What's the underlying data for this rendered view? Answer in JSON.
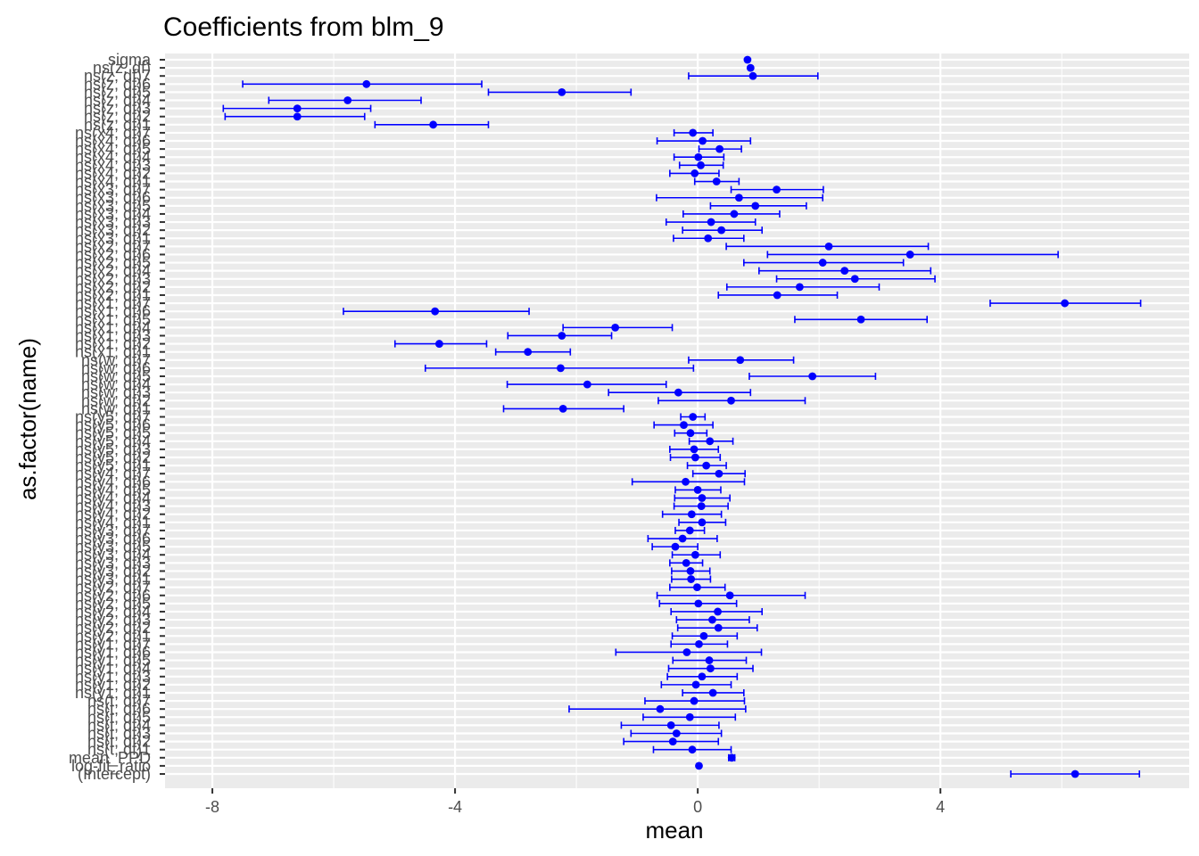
{
  "chart_data": {
    "type": "scatter",
    "title": "Coefficients from blm_9",
    "xlabel": "mean",
    "ylabel": "as.factor(name)",
    "xlim": [
      -8.78,
      8.1
    ],
    "xticks": [
      -8,
      -4,
      0,
      4
    ],
    "grid": true,
    "legend": "none",
    "point_color": "#0000ff",
    "panel_background": "#ebebeb",
    "grid_color": "#ffffff",
    "rows": [
      {
        "name": "sigma",
        "mean": 0.82,
        "lower": 0.82,
        "upper": 0.82
      },
      {
        "name": "ns(z, df)",
        "mean": 0.87,
        "lower": 0.87,
        "upper": 0.87
      },
      {
        "name": "ns(z, df)7",
        "mean": 0.91,
        "lower": -0.15,
        "upper": 1.98
      },
      {
        "name": "ns(z, df)6",
        "mean": -5.46,
        "lower": -7.5,
        "upper": -3.56
      },
      {
        "name": "ns(z, df)5",
        "mean": -2.24,
        "lower": -3.45,
        "upper": -1.1
      },
      {
        "name": "ns(z, df)4",
        "mean": -5.77,
        "lower": -7.07,
        "upper": -4.56
      },
      {
        "name": "ns(z, df)3",
        "mean": -6.6,
        "lower": -7.82,
        "upper": -5.39
      },
      {
        "name": "ns(z, df)2",
        "mean": -6.6,
        "lower": -7.79,
        "upper": -5.49
      },
      {
        "name": "ns(z, df)1",
        "mean": -4.36,
        "lower": -5.32,
        "upper": -3.45
      },
      {
        "name": "ns(x4, df)7",
        "mean": -0.08,
        "lower": -0.39,
        "upper": 0.25
      },
      {
        "name": "ns(x4, df)6",
        "mean": 0.08,
        "lower": -0.67,
        "upper": 0.87
      },
      {
        "name": "ns(x4, df)5",
        "mean": 0.36,
        "lower": 0.02,
        "upper": 0.72
      },
      {
        "name": "ns(x4, df)4",
        "mean": 0.01,
        "lower": -0.39,
        "upper": 0.43
      },
      {
        "name": "ns(x4, df)3",
        "mean": 0.05,
        "lower": -0.3,
        "upper": 0.42
      },
      {
        "name": "ns(x4, df)2",
        "mean": -0.05,
        "lower": -0.46,
        "upper": 0.35
      },
      {
        "name": "ns(x4, df)1",
        "mean": 0.31,
        "lower": -0.05,
        "upper": 0.68
      },
      {
        "name": "ns(x3, df)7",
        "mean": 1.3,
        "lower": 0.55,
        "upper": 2.07
      },
      {
        "name": "ns(x3, df)6",
        "mean": 0.68,
        "lower": -0.68,
        "upper": 2.06
      },
      {
        "name": "ns(x3, df)5",
        "mean": 0.95,
        "lower": 0.21,
        "upper": 1.79
      },
      {
        "name": "ns(x3, df)4",
        "mean": 0.6,
        "lower": -0.24,
        "upper": 1.35
      },
      {
        "name": "ns(x3, df)3",
        "mean": 0.22,
        "lower": -0.52,
        "upper": 0.95
      },
      {
        "name": "ns(x3, df)2",
        "mean": 0.39,
        "lower": -0.25,
        "upper": 1.06
      },
      {
        "name": "ns(x3, df)1",
        "mean": 0.17,
        "lower": -0.4,
        "upper": 0.76
      },
      {
        "name": "ns(x2, df)7",
        "mean": 2.16,
        "lower": 0.47,
        "upper": 3.8
      },
      {
        "name": "ns(x2, df)6",
        "mean": 3.5,
        "lower": 1.15,
        "upper": 5.94
      },
      {
        "name": "ns(x2, df)5",
        "mean": 2.06,
        "lower": 0.76,
        "upper": 3.39
      },
      {
        "name": "ns(x2, df)4",
        "mean": 2.42,
        "lower": 1.01,
        "upper": 3.84
      },
      {
        "name": "ns(x2, df)3",
        "mean": 2.59,
        "lower": 1.3,
        "upper": 3.91
      },
      {
        "name": "ns(x2, df)2",
        "mean": 1.68,
        "lower": 0.48,
        "upper": 2.99
      },
      {
        "name": "ns(x2, df)1",
        "mean": 1.31,
        "lower": 0.34,
        "upper": 2.3
      },
      {
        "name": "ns(x1, df)7",
        "mean": 6.05,
        "lower": 4.82,
        "upper": 7.3
      },
      {
        "name": "ns(x1, df)6",
        "mean": -4.33,
        "lower": -5.84,
        "upper": -2.78
      },
      {
        "name": "ns(x1, df)5",
        "mean": 2.69,
        "lower": 1.6,
        "upper": 3.78
      },
      {
        "name": "ns(x1, df)4",
        "mean": -1.36,
        "lower": -2.22,
        "upper": -0.42
      },
      {
        "name": "ns(x1, df)3",
        "mean": -2.24,
        "lower": -3.13,
        "upper": -1.42
      },
      {
        "name": "ns(x1, df)2",
        "mean": -4.26,
        "lower": -4.99,
        "upper": -3.48
      },
      {
        "name": "ns(x1, df)1",
        "mean": -2.8,
        "lower": -3.33,
        "upper": -2.1
      },
      {
        "name": "ns(w, df)7",
        "mean": 0.7,
        "lower": -0.15,
        "upper": 1.58
      },
      {
        "name": "ns(w, df)6",
        "mean": -2.26,
        "lower": -4.49,
        "upper": -0.07
      },
      {
        "name": "ns(w, df)5",
        "mean": 1.89,
        "lower": 0.85,
        "upper": 2.93
      },
      {
        "name": "ns(w, df)4",
        "mean": -1.82,
        "lower": -3.14,
        "upper": -0.52
      },
      {
        "name": "ns(w, df)3",
        "mean": -0.32,
        "lower": -1.47,
        "upper": 0.87
      },
      {
        "name": "ns(w, df)2",
        "mean": 0.55,
        "lower": -0.65,
        "upper": 1.77
      },
      {
        "name": "ns(w, df)1",
        "mean": -2.22,
        "lower": -3.2,
        "upper": -1.22
      },
      {
        "name": "ns(y5, df)7",
        "mean": -0.08,
        "lower": -0.28,
        "upper": 0.12
      },
      {
        "name": "ns(y5, df)6",
        "mean": -0.23,
        "lower": -0.72,
        "upper": 0.25
      },
      {
        "name": "ns(y5, df)5",
        "mean": -0.12,
        "lower": -0.38,
        "upper": 0.15
      },
      {
        "name": "ns(y5, df)4",
        "mean": 0.2,
        "lower": -0.14,
        "upper": 0.58
      },
      {
        "name": "ns(y5, df)3",
        "mean": -0.06,
        "lower": -0.46,
        "upper": 0.34
      },
      {
        "name": "ns(y5, df)2",
        "mean": -0.04,
        "lower": -0.45,
        "upper": 0.37
      },
      {
        "name": "ns(y5, df)1",
        "mean": 0.14,
        "lower": -0.17,
        "upper": 0.47
      },
      {
        "name": "ns(y4, df)7",
        "mean": 0.35,
        "lower": -0.08,
        "upper": 0.78
      },
      {
        "name": "ns(y4, df)6",
        "mean": -0.2,
        "lower": -1.08,
        "upper": 0.77
      },
      {
        "name": "ns(y4, df)5",
        "mean": 0.0,
        "lower": -0.37,
        "upper": 0.38
      },
      {
        "name": "ns(y4, df)4",
        "mean": 0.07,
        "lower": -0.38,
        "upper": 0.53
      },
      {
        "name": "ns(y4, df)3",
        "mean": 0.06,
        "lower": -0.39,
        "upper": 0.5
      },
      {
        "name": "ns(y4, df)2",
        "mean": -0.1,
        "lower": -0.58,
        "upper": 0.39
      },
      {
        "name": "ns(y4, df)1",
        "mean": 0.07,
        "lower": -0.31,
        "upper": 0.46
      },
      {
        "name": "ns(y3, df)7",
        "mean": -0.13,
        "lower": -0.37,
        "upper": 0.11
      },
      {
        "name": "ns(y3, df)6",
        "mean": -0.25,
        "lower": -0.82,
        "upper": 0.32
      },
      {
        "name": "ns(y3, df)5",
        "mean": -0.37,
        "lower": -0.75,
        "upper": 0.0
      },
      {
        "name": "ns(y3, df)4",
        "mean": -0.04,
        "lower": -0.42,
        "upper": 0.37
      },
      {
        "name": "ns(y3, df)3",
        "mean": -0.19,
        "lower": -0.46,
        "upper": 0.08
      },
      {
        "name": "ns(y3, df)2",
        "mean": -0.12,
        "lower": -0.43,
        "upper": 0.2
      },
      {
        "name": "ns(y3, df)1",
        "mean": -0.11,
        "lower": -0.43,
        "upper": 0.21
      },
      {
        "name": "ns(y2, df)7",
        "mean": -0.01,
        "lower": -0.46,
        "upper": 0.45
      },
      {
        "name": "ns(y2, df)6",
        "mean": 0.53,
        "lower": -0.67,
        "upper": 1.77
      },
      {
        "name": "ns(y2, df)5",
        "mean": 0.01,
        "lower": -0.63,
        "upper": 0.64
      },
      {
        "name": "ns(y2, df)4",
        "mean": 0.33,
        "lower": -0.44,
        "upper": 1.06
      },
      {
        "name": "ns(y2, df)3",
        "mean": 0.24,
        "lower": -0.35,
        "upper": 0.85
      },
      {
        "name": "ns(y2, df)2",
        "mean": 0.34,
        "lower": -0.33,
        "upper": 0.98
      },
      {
        "name": "ns(y2, df)1",
        "mean": 0.1,
        "lower": -0.42,
        "upper": 0.65
      },
      {
        "name": "ns(y1, df)7",
        "mean": 0.02,
        "lower": -0.44,
        "upper": 0.49
      },
      {
        "name": "ns(y1, df)6",
        "mean": -0.18,
        "lower": -1.35,
        "upper": 1.05
      },
      {
        "name": "ns(y1, df)5",
        "mean": 0.19,
        "lower": -0.41,
        "upper": 0.8
      },
      {
        "name": "ns(y1, df)4",
        "mean": 0.21,
        "lower": -0.48,
        "upper": 0.91
      },
      {
        "name": "ns(y1, df)3",
        "mean": 0.07,
        "lower": -0.5,
        "upper": 0.65
      },
      {
        "name": "ns(y1, df)2",
        "mean": -0.03,
        "lower": -0.6,
        "upper": 0.55
      },
      {
        "name": "ns(y1, df)1",
        "mean": 0.25,
        "lower": -0.25,
        "upper": 0.76
      },
      {
        "name": "ns(t, df)7",
        "mean": -0.06,
        "lower": -0.87,
        "upper": 0.77
      },
      {
        "name": "ns(t, df)6",
        "mean": -0.62,
        "lower": -2.12,
        "upper": 0.79
      },
      {
        "name": "ns(t, df)5",
        "mean": -0.13,
        "lower": -0.9,
        "upper": 0.62
      },
      {
        "name": "ns(t, df)4",
        "mean": -0.44,
        "lower": -1.26,
        "upper": 0.35
      },
      {
        "name": "ns(t, df)3",
        "mean": -0.35,
        "lower": -1.1,
        "upper": 0.39
      },
      {
        "name": "ns(t, df)2",
        "mean": -0.41,
        "lower": -1.22,
        "upper": 0.34
      },
      {
        "name": "ns(t, df)1",
        "mean": -0.09,
        "lower": -0.73,
        "upper": 0.55
      },
      {
        "name": "mean_PPD",
        "mean": 0.56,
        "lower": 0.51,
        "upper": 0.61
      },
      {
        "name": "log-fit_ratio",
        "mean": 0.02,
        "lower": 0.02,
        "upper": 0.02
      },
      {
        "name": "(Intercept)",
        "mean": 6.22,
        "lower": 5.16,
        "upper": 7.28
      }
    ]
  }
}
